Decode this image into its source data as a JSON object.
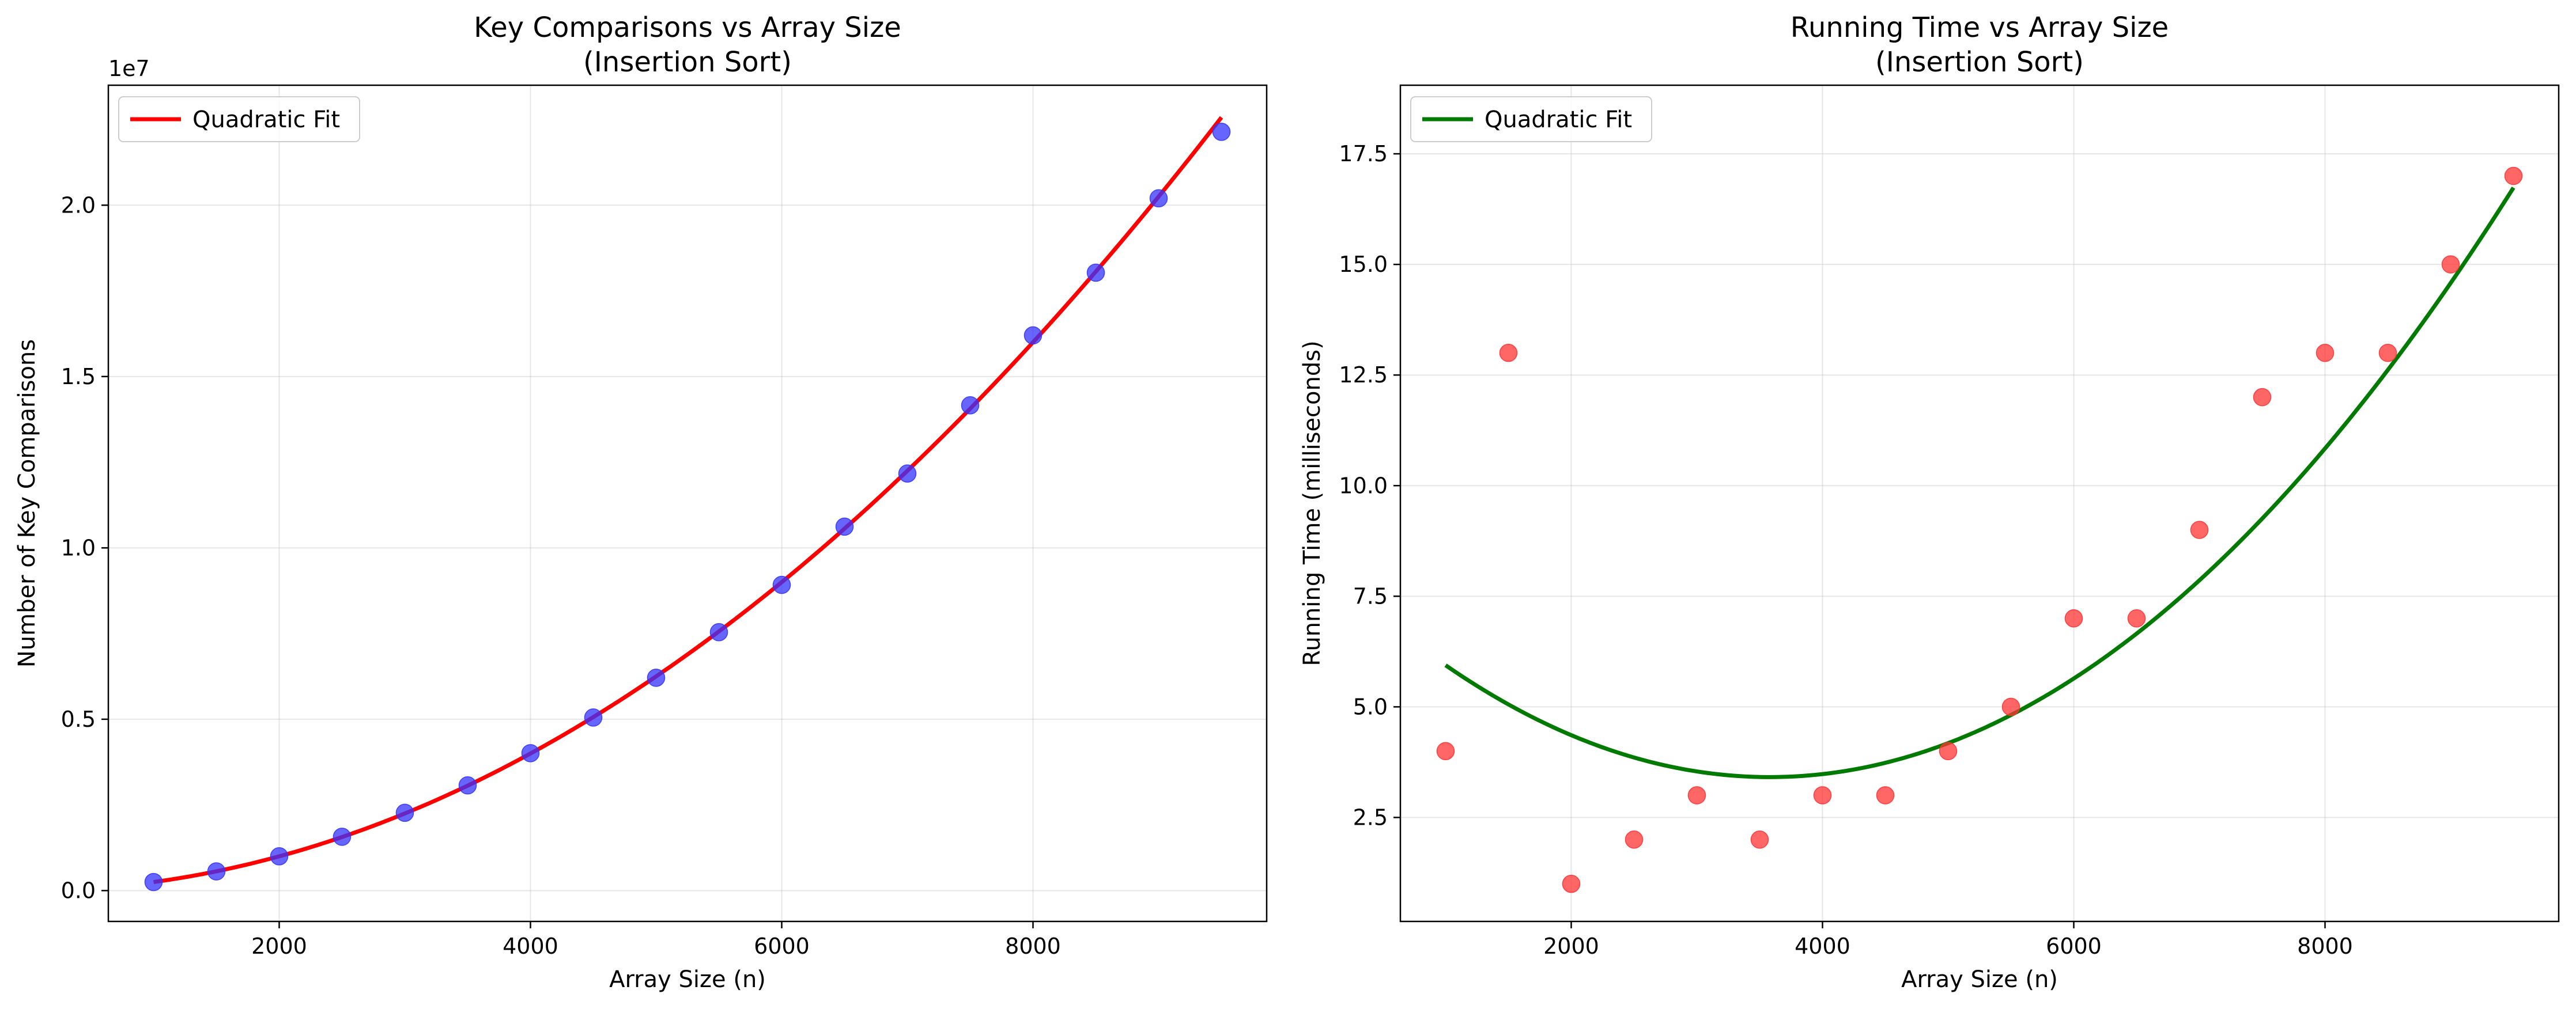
{
  "chart_data": [
    {
      "type": "scatter",
      "title": "Key Comparisons vs Array Size",
      "subtitle": "(Insertion Sort)",
      "xlabel": "Array Size (n)",
      "ylabel": "Number of Key Comparisons",
      "y_offset_label": "1e7",
      "xlim": [
        640,
        9860
      ],
      "ylim": [
        -900000,
        23500000
      ],
      "x_ticks": [
        2000,
        4000,
        6000,
        8000
      ],
      "x_tick_labels": [
        "2000",
        "4000",
        "6000",
        "8000"
      ],
      "y_ticks": [
        0,
        5000000,
        10000000,
        15000000,
        20000000
      ],
      "y_tick_labels": [
        "0.0",
        "0.5",
        "1.0",
        "1.5",
        "2.0"
      ],
      "grid": true,
      "legend_position": "top-left",
      "points": {
        "color": "#3333ff",
        "x": [
          1000,
          1500,
          2000,
          2500,
          3000,
          3500,
          4000,
          4500,
          5000,
          5500,
          6000,
          6500,
          7000,
          7500,
          8000,
          8500,
          9000,
          9500
        ],
        "y": [
          250000,
          560000,
          1000000,
          1570000,
          2270000,
          3070000,
          4010000,
          5050000,
          6210000,
          7540000,
          8920000,
          10620000,
          12170000,
          14160000,
          16200000,
          18030000,
          20200000,
          22140000
        ]
      },
      "fit": {
        "name": "Quadratic Fit",
        "color": "#ff0000",
        "degree": 2,
        "coefficients": [
          0.25,
          0,
          0
        ],
        "x_range": [
          1000,
          9500
        ]
      }
    },
    {
      "type": "scatter",
      "title": "Running Time vs Array Size",
      "subtitle": "(Insertion Sort)",
      "xlabel": "Array Size (n)",
      "ylabel": "Running Time (milliseconds)",
      "y_offset_label": "",
      "xlim": [
        640,
        9860
      ],
      "ylim": [
        0.15,
        19.05
      ],
      "x_ticks": [
        2000,
        4000,
        6000,
        8000
      ],
      "x_tick_labels": [
        "2000",
        "4000",
        "6000",
        "8000"
      ],
      "y_ticks": [
        2.5,
        5.0,
        7.5,
        10.0,
        12.5,
        15.0,
        17.5
      ],
      "y_tick_labels": [
        "2.5",
        "5.0",
        "7.5",
        "10.0",
        "12.5",
        "15.0",
        "17.5"
      ],
      "grid": true,
      "legend_position": "top-left",
      "points": {
        "color": "#ff3333",
        "x": [
          1000,
          1500,
          2000,
          2500,
          3000,
          3500,
          4000,
          4500,
          5000,
          5500,
          6000,
          6500,
          7000,
          7500,
          8000,
          8500,
          9000,
          9500
        ],
        "y": [
          4,
          13,
          1,
          2,
          3,
          2,
          3,
          3,
          4,
          5,
          7,
          7,
          9,
          12,
          13,
          13,
          15,
          17
        ]
      },
      "fit": {
        "name": "Quadratic Fit",
        "color": "#007a00",
        "degree": 2,
        "coefficients": [
          3.8e-07,
          -0.00272,
          8.28
        ],
        "x_range": [
          1000,
          9500
        ]
      }
    }
  ]
}
